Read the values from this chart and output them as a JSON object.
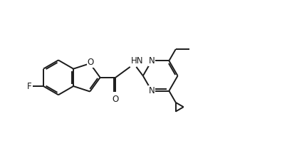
{
  "bg_color": "#ffffff",
  "line_color": "#1a1a1a",
  "line_width": 1.4,
  "figsize": [
    3.96,
    1.98
  ],
  "dpi": 100,
  "xlim": [
    0,
    10
  ],
  "ylim": [
    0,
    5
  ]
}
